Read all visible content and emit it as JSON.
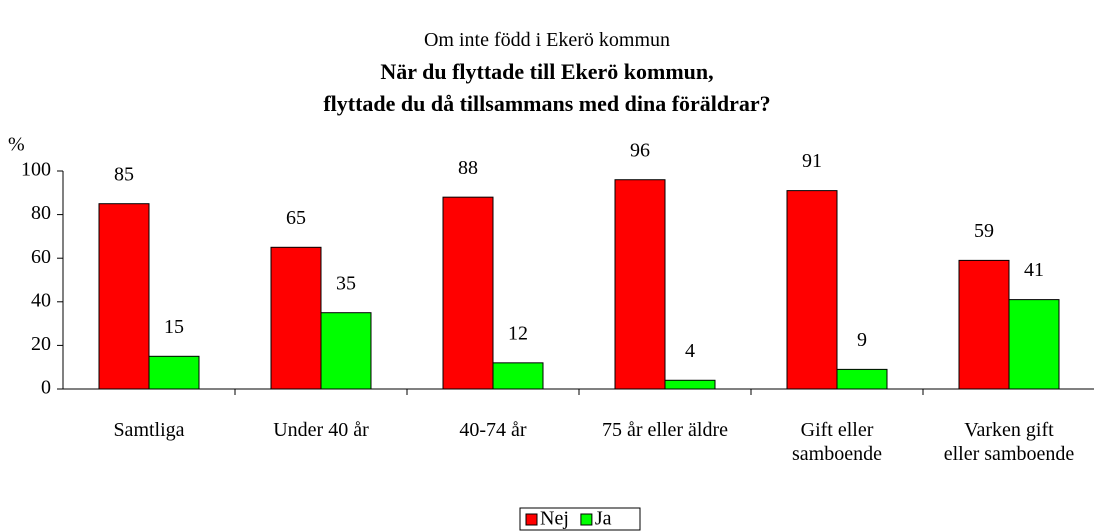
{
  "chart_data": {
    "type": "bar",
    "title": "Om inte född i Ekerö kommun",
    "subtitle": "När du flyttade till Ekerö kommun,\nflyttade du då tillsammans med dina föräldrar?",
    "y_label": "%",
    "categories": [
      "Samtliga",
      "Under 40 år",
      "40-74 år",
      "75 år eller äldre",
      "Gift eller\nsamboende",
      "Varken gift\neller samboende"
    ],
    "series": [
      {
        "name": "Nej",
        "color": "#ff0000",
        "values": [
          85,
          65,
          88,
          96,
          91,
          59
        ]
      },
      {
        "name": "Ja",
        "color": "#00ff00",
        "values": [
          15,
          35,
          12,
          4,
          9,
          41
        ]
      }
    ],
    "ylim": [
      0,
      100
    ],
    "yticks": [
      0,
      20,
      40,
      60,
      80,
      100
    ],
    "grid": false,
    "legend": "bottom"
  }
}
